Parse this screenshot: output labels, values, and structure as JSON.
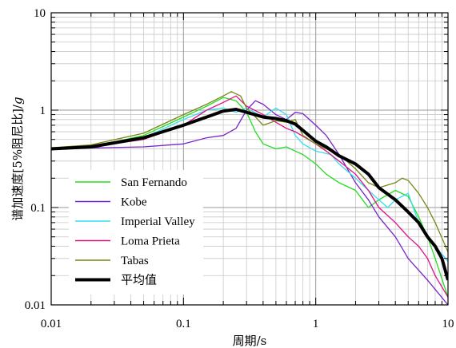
{
  "chart_data": {
    "type": "line",
    "title": "",
    "xlabel": "周期/s",
    "ylabel_main": "谱加速度[5%阻尼比]/",
    "ylabel_italic": "g",
    "x_scale": "log",
    "y_scale": "log",
    "xlim": [
      0.01,
      10
    ],
    "ylim": [
      0.01,
      10
    ],
    "x_ticks": [
      0.01,
      0.1,
      1,
      10
    ],
    "x_tick_labels": [
      "0.01",
      "0.1",
      "1",
      "10"
    ],
    "y_ticks": [
      0.01,
      0.1,
      1,
      10
    ],
    "y_tick_labels": [
      "0.01",
      "0.1",
      "1",
      "10"
    ],
    "grid": true,
    "legend_position": "bottom-left",
    "series": [
      {
        "name": "San Fernando",
        "color": "#22dd22",
        "points": [
          [
            0.01,
            0.4
          ],
          [
            0.02,
            0.42
          ],
          [
            0.05,
            0.55
          ],
          [
            0.1,
            0.85
          ],
          [
            0.15,
            1.1
          ],
          [
            0.2,
            1.35
          ],
          [
            0.25,
            1.25
          ],
          [
            0.3,
            0.95
          ],
          [
            0.35,
            0.6
          ],
          [
            0.4,
            0.45
          ],
          [
            0.5,
            0.4
          ],
          [
            0.6,
            0.42
          ],
          [
            0.7,
            0.38
          ],
          [
            0.8,
            0.35
          ],
          [
            1.0,
            0.28
          ],
          [
            1.2,
            0.22
          ],
          [
            1.5,
            0.18
          ],
          [
            2.0,
            0.15
          ],
          [
            2.5,
            0.1
          ],
          [
            3.0,
            0.12
          ],
          [
            4.0,
            0.15
          ],
          [
            5.0,
            0.13
          ],
          [
            6.0,
            0.08
          ],
          [
            7.0,
            0.05
          ],
          [
            8.0,
            0.03
          ],
          [
            10.0,
            0.012
          ]
        ]
      },
      {
        "name": "Kobe",
        "color": "#7722cc",
        "points": [
          [
            0.01,
            0.4
          ],
          [
            0.05,
            0.42
          ],
          [
            0.1,
            0.45
          ],
          [
            0.15,
            0.52
          ],
          [
            0.2,
            0.55
          ],
          [
            0.25,
            0.65
          ],
          [
            0.3,
            1.0
          ],
          [
            0.35,
            1.25
          ],
          [
            0.4,
            1.15
          ],
          [
            0.5,
            0.9
          ],
          [
            0.6,
            0.8
          ],
          [
            0.7,
            0.95
          ],
          [
            0.8,
            0.92
          ],
          [
            1.0,
            0.7
          ],
          [
            1.2,
            0.55
          ],
          [
            1.5,
            0.35
          ],
          [
            2.0,
            0.18
          ],
          [
            2.5,
            0.12
          ],
          [
            3.0,
            0.08
          ],
          [
            4.0,
            0.05
          ],
          [
            5.0,
            0.03
          ],
          [
            7.0,
            0.018
          ],
          [
            10.0,
            0.01
          ]
        ]
      },
      {
        "name": "Imperial Valley",
        "color": "#33ddee",
        "points": [
          [
            0.01,
            0.4
          ],
          [
            0.02,
            0.42
          ],
          [
            0.05,
            0.52
          ],
          [
            0.1,
            0.8
          ],
          [
            0.15,
            1.0
          ],
          [
            0.2,
            1.05
          ],
          [
            0.25,
            0.95
          ],
          [
            0.3,
            1.05
          ],
          [
            0.4,
            0.85
          ],
          [
            0.5,
            1.05
          ],
          [
            0.6,
            0.9
          ],
          [
            0.7,
            0.55
          ],
          [
            0.8,
            0.45
          ],
          [
            1.0,
            0.38
          ],
          [
            1.3,
            0.35
          ],
          [
            1.5,
            0.28
          ],
          [
            2.0,
            0.2
          ],
          [
            2.5,
            0.15
          ],
          [
            3.0,
            0.12
          ],
          [
            3.5,
            0.1
          ],
          [
            4.0,
            0.12
          ],
          [
            5.0,
            0.14
          ],
          [
            6.0,
            0.07
          ],
          [
            7.0,
            0.05
          ],
          [
            8.0,
            0.04
          ],
          [
            10.0,
            0.028
          ]
        ]
      },
      {
        "name": "Loma Prieta",
        "color": "#dd1188",
        "points": [
          [
            0.01,
            0.4
          ],
          [
            0.02,
            0.42
          ],
          [
            0.05,
            0.5
          ],
          [
            0.1,
            0.7
          ],
          [
            0.15,
            1.0
          ],
          [
            0.2,
            1.2
          ],
          [
            0.25,
            1.4
          ],
          [
            0.3,
            1.1
          ],
          [
            0.4,
            0.9
          ],
          [
            0.5,
            0.75
          ],
          [
            0.6,
            0.65
          ],
          [
            0.7,
            0.6
          ],
          [
            1.0,
            0.45
          ],
          [
            1.2,
            0.38
          ],
          [
            1.5,
            0.3
          ],
          [
            2.0,
            0.22
          ],
          [
            2.5,
            0.15
          ],
          [
            3.0,
            0.1
          ],
          [
            4.0,
            0.07
          ],
          [
            5.0,
            0.05
          ],
          [
            6.0,
            0.04
          ],
          [
            7.0,
            0.03
          ],
          [
            8.0,
            0.02
          ],
          [
            10.0,
            0.012
          ]
        ]
      },
      {
        "name": "Tabas",
        "color": "#778811",
        "points": [
          [
            0.01,
            0.41
          ],
          [
            0.02,
            0.44
          ],
          [
            0.05,
            0.58
          ],
          [
            0.1,
            0.9
          ],
          [
            0.15,
            1.15
          ],
          [
            0.2,
            1.4
          ],
          [
            0.23,
            1.55
          ],
          [
            0.27,
            1.4
          ],
          [
            0.3,
            1.05
          ],
          [
            0.35,
            0.85
          ],
          [
            0.4,
            0.7
          ],
          [
            0.5,
            0.78
          ],
          [
            0.6,
            0.75
          ],
          [
            0.7,
            0.8
          ],
          [
            0.8,
            0.55
          ],
          [
            1.0,
            0.45
          ],
          [
            1.2,
            0.4
          ],
          [
            1.5,
            0.35
          ],
          [
            2.0,
            0.25
          ],
          [
            2.5,
            0.18
          ],
          [
            3.0,
            0.16
          ],
          [
            4.0,
            0.18
          ],
          [
            4.5,
            0.2
          ],
          [
            5.0,
            0.19
          ],
          [
            6.0,
            0.14
          ],
          [
            7.0,
            0.1
          ],
          [
            8.0,
            0.07
          ],
          [
            10.0,
            0.035
          ]
        ]
      },
      {
        "name": "平均值",
        "color": "#000000",
        "width": 4,
        "points": [
          [
            0.01,
            0.4
          ],
          [
            0.02,
            0.42
          ],
          [
            0.05,
            0.52
          ],
          [
            0.1,
            0.7
          ],
          [
            0.15,
            0.85
          ],
          [
            0.2,
            0.98
          ],
          [
            0.25,
            1.02
          ],
          [
            0.3,
            0.95
          ],
          [
            0.4,
            0.85
          ],
          [
            0.5,
            0.82
          ],
          [
            0.6,
            0.78
          ],
          [
            0.7,
            0.72
          ],
          [
            0.8,
            0.62
          ],
          [
            1.0,
            0.48
          ],
          [
            1.2,
            0.42
          ],
          [
            1.5,
            0.34
          ],
          [
            2.0,
            0.28
          ],
          [
            2.5,
            0.22
          ],
          [
            3.0,
            0.16
          ],
          [
            4.0,
            0.12
          ],
          [
            5.0,
            0.09
          ],
          [
            6.0,
            0.07
          ],
          [
            7.0,
            0.05
          ],
          [
            8.0,
            0.04
          ],
          [
            9.0,
            0.03
          ],
          [
            10.0,
            0.018
          ]
        ]
      }
    ]
  }
}
